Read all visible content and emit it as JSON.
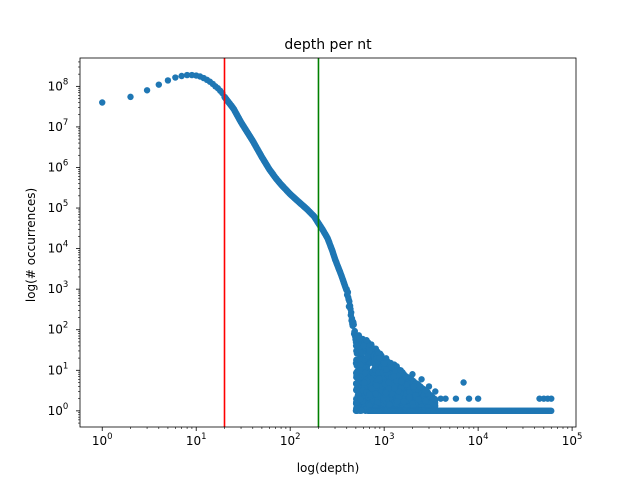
{
  "chart_data": {
    "type": "scatter",
    "title": "depth per nt",
    "xlabel": "log(depth)",
    "ylabel": "log(# occurrences)",
    "x_scale": "log",
    "y_scale": "log",
    "xlim": [
      0.58,
      110000
    ],
    "ylim": [
      0.4,
      500000000
    ],
    "grid": false,
    "marker_color": "#1f77b4",
    "x_ticks": [
      {
        "value": 1,
        "base": "10",
        "exp": "0"
      },
      {
        "value": 10,
        "base": "10",
        "exp": "1"
      },
      {
        "value": 100,
        "base": "10",
        "exp": "2"
      },
      {
        "value": 1000,
        "base": "10",
        "exp": "3"
      },
      {
        "value": 10000,
        "base": "10",
        "exp": "4"
      },
      {
        "value": 100000,
        "base": "10",
        "exp": "5"
      }
    ],
    "y_ticks": [
      {
        "value": 1,
        "base": "10",
        "exp": "0"
      },
      {
        "value": 10,
        "base": "10",
        "exp": "1"
      },
      {
        "value": 100,
        "base": "10",
        "exp": "2"
      },
      {
        "value": 1000,
        "base": "10",
        "exp": "3"
      },
      {
        "value": 10000,
        "base": "10",
        "exp": "4"
      },
      {
        "value": 100000,
        "base": "10",
        "exp": "5"
      },
      {
        "value": 1000000,
        "base": "10",
        "exp": "6"
      },
      {
        "value": 10000000,
        "base": "10",
        "exp": "7"
      },
      {
        "value": 100000000,
        "base": "10",
        "exp": "8"
      }
    ],
    "vlines": [
      {
        "x": 20,
        "color": "#ff0000"
      },
      {
        "x": 200,
        "color": "#008000"
      }
    ],
    "main_curve": [
      [
        1,
        40000000
      ],
      [
        2,
        55000000
      ],
      [
        3,
        80000000
      ],
      [
        4,
        110000000
      ],
      [
        5,
        140000000
      ],
      [
        6,
        165000000
      ],
      [
        7,
        180000000
      ],
      [
        8,
        190000000
      ],
      [
        9,
        190000000
      ],
      [
        10,
        185000000
      ],
      [
        11,
        175000000
      ],
      [
        12,
        160000000
      ],
      [
        13,
        145000000
      ],
      [
        14,
        130000000
      ],
      [
        15,
        115000000
      ],
      [
        16,
        100000000
      ],
      [
        17,
        90000000
      ],
      [
        18,
        78000000
      ],
      [
        19,
        68000000
      ],
      [
        20,
        55000000
      ],
      [
        25,
        28000000
      ],
      [
        30,
        13000000
      ],
      [
        40,
        4500000
      ],
      [
        50,
        1800000
      ],
      [
        60,
        900000
      ],
      [
        70,
        550000
      ],
      [
        80,
        380000
      ],
      [
        100,
        220000
      ],
      [
        120,
        150000
      ],
      [
        150,
        95000
      ],
      [
        180,
        62000
      ],
      [
        200,
        42000
      ],
      [
        220,
        30000
      ],
      [
        250,
        18000
      ],
      [
        280,
        9000
      ],
      [
        300,
        5500
      ],
      [
        350,
        2200
      ],
      [
        400,
        900
      ],
      [
        450,
        200
      ],
      [
        500,
        60
      ],
      [
        550,
        25
      ],
      [
        600,
        12
      ],
      [
        700,
        6
      ],
      [
        800,
        3
      ],
      [
        1000,
        2
      ]
    ],
    "scatter_region": {
      "x_range": [
        500,
        3500
      ],
      "y_range": [
        1,
        70
      ]
    },
    "baseline": {
      "y": 1,
      "x_range": [
        700,
        60000
      ]
    },
    "outliers": [
      [
        550,
        60
      ],
      [
        600,
        40
      ],
      [
        650,
        55
      ],
      [
        700,
        30
      ],
      [
        1000,
        15
      ],
      [
        1200,
        12
      ],
      [
        1500,
        10
      ],
      [
        2000,
        8
      ],
      [
        2500,
        6
      ],
      [
        3000,
        4
      ],
      [
        3500,
        3
      ],
      [
        4000,
        2
      ],
      [
        4500,
        2
      ],
      [
        7000,
        5
      ],
      [
        5800,
        2
      ],
      [
        8000,
        2
      ],
      [
        10000,
        2
      ],
      [
        45000,
        2
      ],
      [
        50000,
        2
      ],
      [
        55000,
        2
      ],
      [
        60000,
        2
      ]
    ]
  }
}
